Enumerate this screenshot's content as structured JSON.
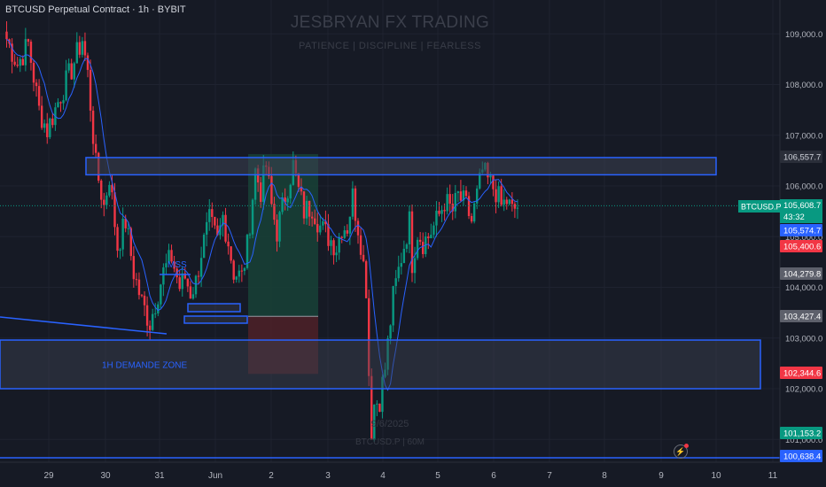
{
  "header": {
    "title": "BTCUSD Perpetual Contract · 1h · BYBIT"
  },
  "watermark": {
    "title": "JESBRYAN FX TRADING",
    "subtitle": "PATIENCE  |  DISCIPLINE  |  FEARLESS",
    "date": "9/6/2025",
    "symbol": "BTCUSD.P | 60M"
  },
  "annotations": {
    "mss": "MSS",
    "demand_zone": "1H DEMANDE ZONE"
  },
  "price_labels": {
    "resistance": "106,557.7",
    "symbol_tag": "BTCUSD.P",
    "last_price": "105,608.7",
    "countdown": "43:32",
    "ma": "105,574.7",
    "stop": "105,400.6",
    "tp_top": "104,279.8",
    "tp_level": "103,427.4",
    "sl_level": "102,344.6",
    "low_a": "101,153.2",
    "low_b": "100,638.4"
  },
  "colors": {
    "background": "#161a25",
    "up": "#089981",
    "down": "#f23645",
    "ma": "#2962ff",
    "zone_border": "#2962ff",
    "zone_fill": "#2a2e39",
    "profit_fill": "#173f36",
    "loss_fill": "#4a2028"
  },
  "chart_data": {
    "type": "candlestick",
    "symbol": "BTCUSD Perpetual Contract",
    "timeframe": "1h",
    "exchange": "BYBIT",
    "y_axis": {
      "ticks": [
        "109,000.0",
        "108,000.0",
        "107,000.0",
        "106,000.0",
        "105,000.0",
        "104,000.0",
        "103,000.0",
        "102,000.0",
        "101,000.0"
      ],
      "ylim": [
        100600,
        109250
      ]
    },
    "x_axis": {
      "ticks": [
        "29",
        "30",
        "31",
        "Jun",
        "2",
        "3",
        "4",
        "5",
        "6",
        "7",
        "8",
        "9",
        "10",
        "11"
      ]
    },
    "ohlc_path_close": [
      [
        0,
        108900
      ],
      [
        4,
        108400
      ],
      [
        8,
        108800
      ],
      [
        12,
        107500
      ],
      [
        15,
        107100
      ],
      [
        20,
        107800
      ],
      [
        24,
        108300
      ],
      [
        28,
        108900
      ],
      [
        30,
        108200
      ],
      [
        33,
        106400
      ],
      [
        36,
        105600
      ],
      [
        38,
        106200
      ],
      [
        41,
        104800
      ],
      [
        44,
        105300
      ],
      [
        47,
        104300
      ],
      [
        50,
        103700
      ],
      [
        53,
        103300
      ],
      [
        55,
        103700
      ],
      [
        58,
        104300
      ],
      [
        61,
        104600
      ],
      [
        64,
        104000
      ],
      [
        66,
        104200
      ],
      [
        68,
        103900
      ],
      [
        70,
        104100
      ],
      [
        72,
        104700
      ],
      [
        75,
        105300
      ],
      [
        78,
        104900
      ],
      [
        80,
        105400
      ],
      [
        82,
        104900
      ],
      [
        84,
        104300
      ],
      [
        87,
        104200
      ],
      [
        89,
        104800
      ],
      [
        92,
        106300
      ],
      [
        94,
        105900
      ],
      [
        96,
        106400
      ],
      [
        98,
        105600
      ],
      [
        100,
        105100
      ],
      [
        103,
        105800
      ],
      [
        106,
        106400
      ],
      [
        108,
        105900
      ],
      [
        110,
        105500
      ],
      [
        113,
        105600
      ],
      [
        116,
        105200
      ],
      [
        119,
        105000
      ],
      [
        122,
        104800
      ],
      [
        124,
        105200
      ],
      [
        126,
        105200
      ],
      [
        128,
        105800
      ],
      [
        131,
        104900
      ],
      [
        133,
        104000
      ],
      [
        134,
        102300
      ],
      [
        135,
        101200
      ],
      [
        136,
        101700
      ],
      [
        138,
        101800
      ],
      [
        140,
        102400
      ],
      [
        143,
        103800
      ],
      [
        146,
        104600
      ],
      [
        149,
        105300
      ],
      [
        150,
        104500
      ],
      [
        152,
        105100
      ],
      [
        154,
        104900
      ],
      [
        156,
        105000
      ],
      [
        159,
        105300
      ],
      [
        162,
        105700
      ],
      [
        165,
        105500
      ],
      [
        167,
        105800
      ],
      [
        170,
        105600
      ],
      [
        172,
        105300
      ],
      [
        174,
        105800
      ],
      [
        176,
        106300
      ],
      [
        178,
        106100
      ],
      [
        181,
        105900
      ],
      [
        183,
        105600
      ],
      [
        185,
        105700
      ],
      [
        187,
        105500
      ],
      [
        189,
        105600
      ]
    ],
    "zones": [
      {
        "label": "resistance",
        "price_top": 106560,
        "price_bottom": 106220,
        "x_start": "30",
        "x_end": "9"
      },
      {
        "label": "1H DEMANDE ZONE",
        "price_top": 102960,
        "price_bottom": 102000,
        "x_start": "28",
        "x_end": "11"
      }
    ],
    "position": {
      "entry": 103427.4,
      "target": 106557.7,
      "stop": 102344.6
    },
    "horizontal_lines": [
      100638.4
    ]
  }
}
